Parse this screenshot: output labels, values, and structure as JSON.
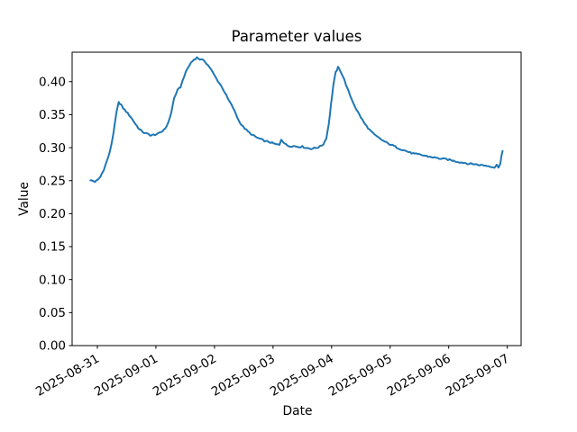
{
  "chart_data": {
    "type": "line",
    "title": "Parameter values",
    "xlabel": "Date",
    "ylabel": "Value",
    "legend": null,
    "grid": false,
    "background_color": "#ffffff",
    "line_color": "#1f77b4",
    "spine_color": "#000000",
    "x_epoch": "2025-08-31",
    "x_tick_labels": [
      "2025-08-31",
      "2025-09-01",
      "2025-09-02",
      "2025-09-03",
      "2025-09-04",
      "2025-09-05",
      "2025-09-06",
      "2025-09-07"
    ],
    "x_tick_days": [
      0,
      1,
      2,
      3,
      4,
      5,
      6,
      7
    ],
    "x_tick_rotation_deg": 30,
    "y_ticks": [
      0.0,
      0.05,
      0.1,
      0.15,
      0.2,
      0.25,
      0.3,
      0.35,
      0.4
    ],
    "xlim_days": [
      -0.431,
      7.236
    ],
    "ylim": [
      0,
      0.4447
    ],
    "noise_amplitude": 0.0012,
    "series": [
      {
        "name": "parameter",
        "x_days": [
          -0.12,
          -0.08,
          -0.04,
          0.0,
          0.05,
          0.11,
          0.17,
          0.22,
          0.26,
          0.3,
          0.33,
          0.365,
          0.4,
          0.44,
          0.49,
          0.57,
          0.65,
          0.72,
          0.8,
          0.88,
          0.92,
          0.96,
          1.03,
          1.11,
          1.19,
          1.26,
          1.31,
          1.37,
          1.42,
          1.48,
          1.54,
          1.6,
          1.65,
          1.7,
          1.75,
          1.83,
          1.92,
          2.03,
          2.14,
          2.23,
          2.32,
          2.42,
          2.49,
          2.57,
          2.65,
          2.73,
          2.8,
          2.88,
          2.96,
          3.03,
          3.11,
          3.14,
          3.18,
          3.22,
          3.27,
          3.35,
          3.42,
          3.5,
          3.58,
          3.65,
          3.73,
          3.8,
          3.86,
          3.91,
          3.95,
          3.99,
          4.03,
          4.07,
          4.11,
          4.15,
          4.2,
          4.27,
          4.34,
          4.42,
          4.5,
          4.57,
          4.65,
          4.73,
          4.81,
          4.88,
          4.96,
          5.04,
          5.11,
          5.19,
          5.27,
          5.34,
          5.42,
          5.5,
          5.58,
          5.65,
          5.73,
          5.81,
          5.88,
          5.96,
          6.04,
          6.11,
          6.19,
          6.27,
          6.35,
          6.42,
          6.5,
          6.58,
          6.65,
          6.73,
          6.78,
          6.82,
          6.85,
          6.88,
          6.9,
          6.92
        ],
        "values": [
          0.2505,
          0.2495,
          0.2485,
          0.2505,
          0.2555,
          0.267,
          0.2815,
          0.296,
          0.3145,
          0.337,
          0.355,
          0.3685,
          0.3655,
          0.36,
          0.355,
          0.3465,
          0.336,
          0.3275,
          0.3225,
          0.32,
          0.3185,
          0.3195,
          0.3205,
          0.325,
          0.333,
          0.352,
          0.375,
          0.387,
          0.392,
          0.408,
          0.42,
          0.429,
          0.4335,
          0.4365,
          0.434,
          0.4315,
          0.4215,
          0.405,
          0.39,
          0.374,
          0.36,
          0.34,
          0.3315,
          0.3245,
          0.319,
          0.315,
          0.3125,
          0.3095,
          0.308,
          0.3055,
          0.304,
          0.3125,
          0.3085,
          0.3045,
          0.3025,
          0.3025,
          0.3015,
          0.3015,
          0.2995,
          0.2985,
          0.2995,
          0.3015,
          0.3055,
          0.3145,
          0.335,
          0.3655,
          0.395,
          0.414,
          0.4215,
          0.4165,
          0.407,
          0.3895,
          0.374,
          0.3585,
          0.346,
          0.3355,
          0.327,
          0.3195,
          0.3145,
          0.3105,
          0.3065,
          0.3035,
          0.3005,
          0.2975,
          0.295,
          0.2925,
          0.2905,
          0.2895,
          0.288,
          0.2865,
          0.2855,
          0.284,
          0.283,
          0.2825,
          0.281,
          0.2795,
          0.278,
          0.277,
          0.2755,
          0.2755,
          0.274,
          0.2735,
          0.2725,
          0.2715,
          0.27,
          0.2735,
          0.2705,
          0.2765,
          0.287,
          0.295
        ]
      }
    ]
  }
}
